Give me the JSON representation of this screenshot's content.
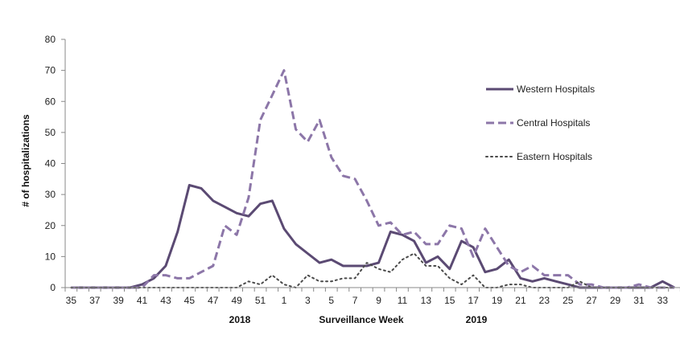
{
  "chart_data": {
    "type": "line",
    "title": "",
    "xlabel": "Surveillance Week",
    "ylabel": "# of hospitalizations",
    "year_labels": [
      "2018",
      "2019"
    ],
    "ylim": [
      0,
      80
    ],
    "yticks": [
      0,
      10,
      20,
      30,
      40,
      50,
      60,
      70,
      80
    ],
    "grid": false,
    "legend_position": "right",
    "weeks": [
      35,
      36,
      37,
      38,
      39,
      40,
      41,
      42,
      43,
      44,
      45,
      46,
      47,
      48,
      49,
      50,
      51,
      52,
      1,
      2,
      3,
      4,
      5,
      6,
      7,
      8,
      9,
      10,
      11,
      12,
      13,
      14,
      15,
      16,
      17,
      18,
      19,
      20,
      21,
      22,
      23,
      24,
      25,
      26,
      27,
      28,
      29,
      30,
      31,
      32,
      33,
      34
    ],
    "xtick_labels": [
      "35",
      "37",
      "39",
      "41",
      "43",
      "45",
      "47",
      "49",
      "51",
      "1",
      "3",
      "5",
      "7",
      "9",
      "11",
      "13",
      "15",
      "17",
      "19",
      "21",
      "23",
      "25",
      "27",
      "29",
      "31",
      "33"
    ],
    "series": [
      {
        "name": "Western Hospitals",
        "color": "#5b4a73",
        "style": "solid",
        "values": [
          0,
          0,
          0,
          0,
          0,
          0,
          1,
          3,
          7,
          18,
          33,
          32,
          28,
          26,
          24,
          23,
          27,
          28,
          19,
          14,
          11,
          8,
          9,
          7,
          7,
          7,
          8,
          18,
          17,
          15,
          8,
          10,
          6,
          15,
          13,
          5,
          6,
          9,
          3,
          2,
          3,
          2,
          1,
          0,
          0,
          0,
          0,
          0,
          0,
          0,
          2,
          0
        ]
      },
      {
        "name": "Central Hospitals",
        "color": "#8c76a8",
        "style": "dashed",
        "values": [
          0,
          0,
          0,
          0,
          0,
          0,
          0,
          4,
          4,
          3,
          3,
          5,
          7,
          20,
          17,
          29,
          54,
          62,
          70,
          51,
          47,
          54,
          42,
          36,
          35,
          28,
          20,
          21,
          17,
          18,
          14,
          14,
          20,
          19,
          10,
          19,
          13,
          7,
          5,
          7,
          4,
          4,
          4,
          1,
          1,
          0,
          0,
          0,
          1,
          0,
          0,
          0
        ]
      },
      {
        "name": "Eastern Hospitals",
        "color": "#4a4a4a",
        "style": "dotted",
        "values": [
          0,
          0,
          0,
          0,
          0,
          0,
          0,
          0,
          0,
          0,
          0,
          0,
          0,
          0,
          0,
          2,
          1,
          4,
          1,
          0,
          4,
          2,
          2,
          3,
          3,
          8,
          6,
          5,
          9,
          11,
          7,
          7,
          3,
          1,
          4,
          0,
          0,
          1,
          1,
          0,
          0,
          0,
          0,
          2,
          0,
          0,
          0,
          0,
          0,
          0,
          0,
          0
        ]
      }
    ]
  }
}
